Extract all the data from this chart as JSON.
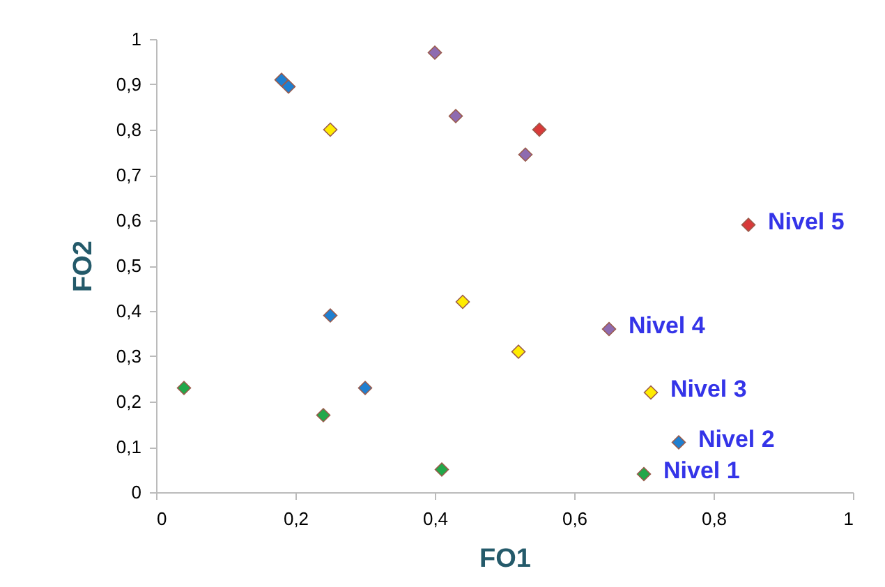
{
  "chart_data": {
    "type": "scatter",
    "xlabel": "FO1",
    "ylabel": "FO2",
    "marker": "diamond",
    "grid": false,
    "xlim": [
      0,
      1
    ],
    "ylim": [
      0,
      1
    ],
    "xticks": [
      0,
      {
        "value": 0.2,
        "label": "0,2"
      },
      {
        "value": 0.4,
        "label": "0,4"
      },
      {
        "value": 0.6,
        "label": "0,6"
      },
      {
        "value": 0.8,
        "label": "0,8"
      },
      1
    ],
    "yticks": [
      0,
      {
        "value": 0.1,
        "label": "0,1"
      },
      {
        "value": 0.2,
        "label": "0,2"
      },
      {
        "value": 0.3,
        "label": "0,3"
      },
      {
        "value": 0.4,
        "label": "0,4"
      },
      {
        "value": 0.5,
        "label": "0,5"
      },
      {
        "value": 0.6,
        "label": "0,6"
      },
      {
        "value": 0.7,
        "label": "0,7"
      },
      {
        "value": 0.8,
        "label": "0,8"
      },
      {
        "value": 0.9,
        "label": "0,9"
      },
      1
    ],
    "series": [
      {
        "name": "Nivel 1",
        "color": "#22a84a",
        "x": [
          0.04,
          0.24,
          0.41,
          0.7
        ],
        "values": [
          0.23,
          0.17,
          0.05,
          0.04
        ]
      },
      {
        "name": "Nivel 2",
        "color": "#1f7fd0",
        "x": [
          0.18,
          0.19,
          0.25,
          0.3,
          0.75
        ],
        "values": [
          0.91,
          0.895,
          0.39,
          0.23,
          0.11
        ]
      },
      {
        "name": "Nivel 3",
        "color": "#ffec00",
        "x": [
          0.25,
          0.44,
          0.52,
          0.71
        ],
        "values": [
          0.8,
          0.42,
          0.31,
          0.22
        ]
      },
      {
        "name": "Nivel 4",
        "color": "#8e6bb0",
        "x": [
          0.4,
          0.43,
          0.53,
          0.65
        ],
        "values": [
          0.97,
          0.83,
          0.745,
          0.36
        ]
      },
      {
        "name": "Nivel 5",
        "color": "#d83a3a",
        "x": [
          0.55,
          0.85
        ],
        "values": [
          0.8,
          0.59
        ]
      }
    ]
  }
}
